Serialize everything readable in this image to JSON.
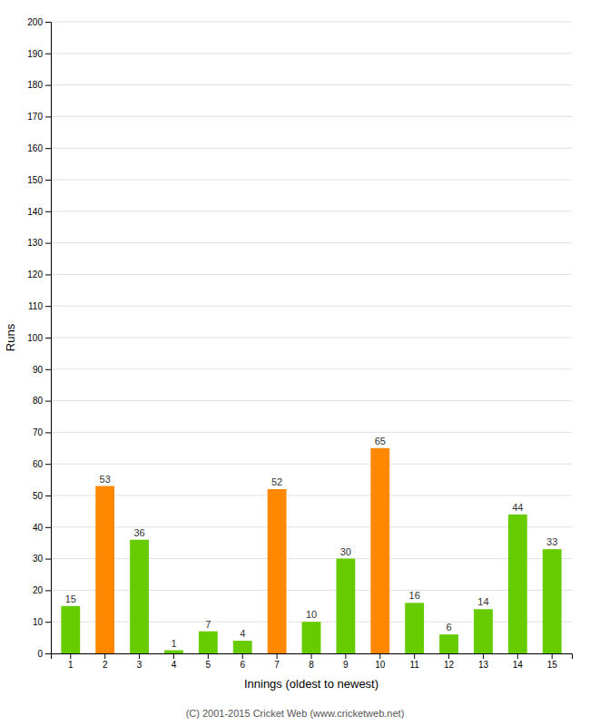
{
  "chart_data": {
    "type": "bar",
    "xlabel": "Innings (oldest to newest)",
    "ylabel": "Runs",
    "categories": [
      "1",
      "2",
      "3",
      "4",
      "5",
      "6",
      "7",
      "8",
      "9",
      "10",
      "11",
      "12",
      "13",
      "14",
      "15"
    ],
    "values": [
      15,
      53,
      36,
      1,
      7,
      4,
      52,
      10,
      30,
      65,
      16,
      6,
      14,
      44,
      33
    ],
    "colors": [
      "#66cc00",
      "#ff8800",
      "#66cc00",
      "#66cc00",
      "#66cc00",
      "#66cc00",
      "#ff8800",
      "#66cc00",
      "#66cc00",
      "#ff8800",
      "#66cc00",
      "#66cc00",
      "#66cc00",
      "#66cc00",
      "#66cc00"
    ],
    "ylim": [
      0,
      200
    ],
    "yticks": [
      0,
      10,
      20,
      30,
      40,
      50,
      60,
      70,
      80,
      90,
      100,
      110,
      120,
      130,
      140,
      150,
      160,
      170,
      180,
      190,
      200
    ],
    "grid": true,
    "data_labels": true,
    "annotations": [
      "(C) 2001-2015 Cricket Web (www.cricketweb.net)"
    ]
  }
}
